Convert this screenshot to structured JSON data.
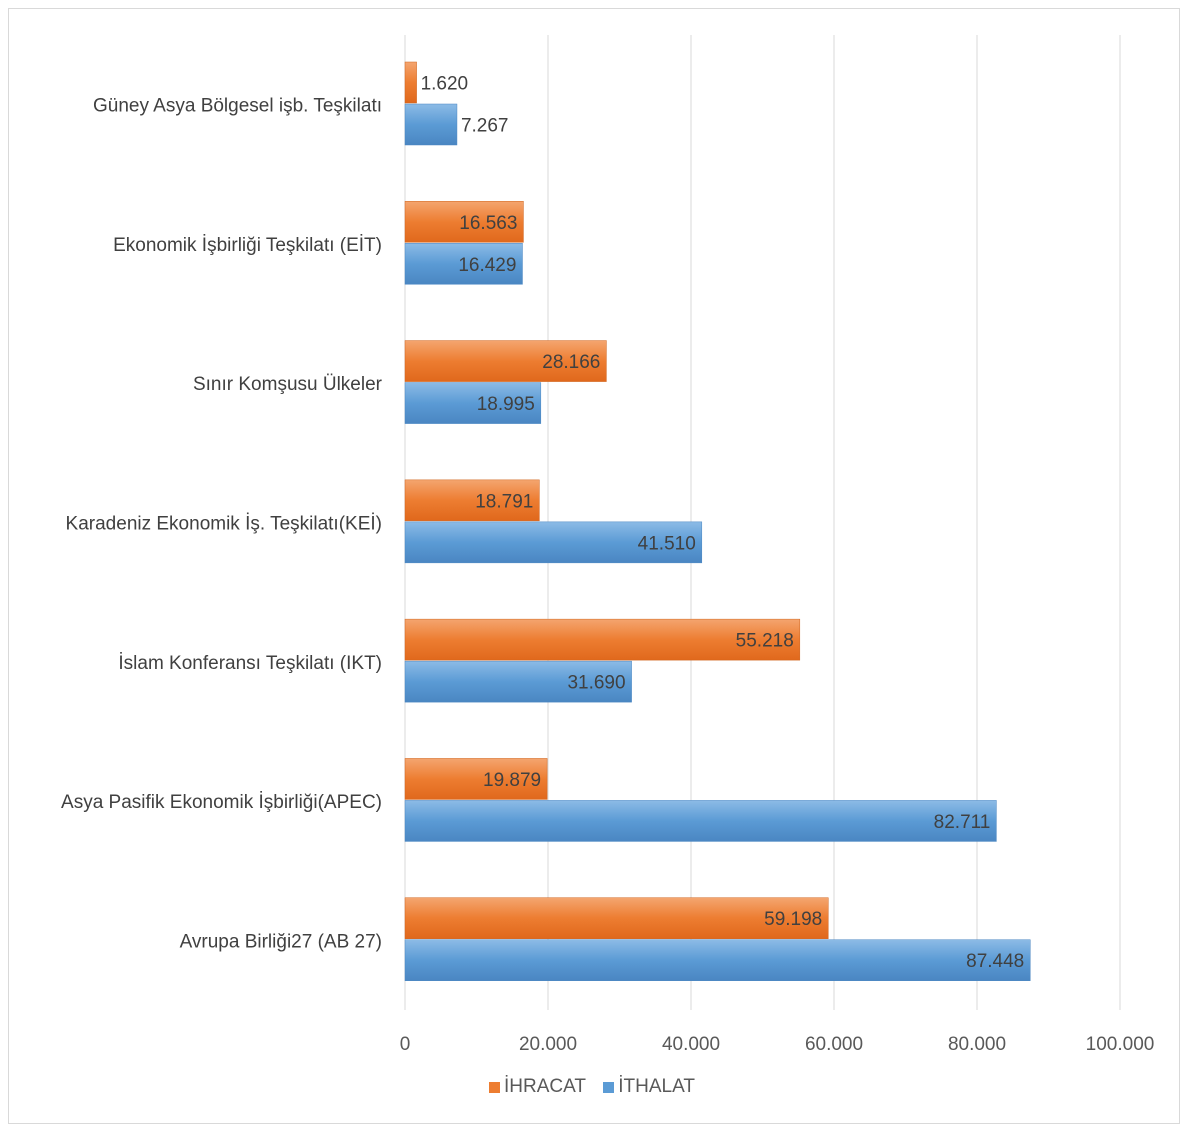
{
  "chart_data": {
    "type": "bar",
    "orientation": "horizontal",
    "title": "",
    "xlabel": "",
    "ylabel": "",
    "xlim": [
      0,
      100000
    ],
    "x_ticks": [
      0,
      20000,
      40000,
      60000,
      80000,
      100000
    ],
    "x_tick_labels": [
      "0",
      "20.000",
      "40.000",
      "60.000",
      "80.000",
      "100.000"
    ],
    "grid": true,
    "legend_position": "bottom",
    "categories": [
      "Güney Asya Bölgesel işb. Teşkilatı",
      "Ekonomik İşbirliği Teşkilatı (EİT)",
      "Sınır Komşusu Ülkeler",
      "Karadeniz Ekonomik İş. Teşkilatı(KEİ)",
      "İslam Konferansı Teşkilatı (IKT)",
      "Asya Pasifik Ekonomik İşbirliği(APEC)",
      "Avrupa Birliği27  (AB 27)"
    ],
    "series": [
      {
        "name": "İHRACAT",
        "color": "#ed7d31",
        "values": [
          1620,
          16563,
          28166,
          18791,
          55218,
          19879,
          59198
        ],
        "labels": [
          "1.620",
          "16.563",
          "28.166",
          "18.791",
          "55.218",
          "19.879",
          "59.198"
        ]
      },
      {
        "name": "İTHALAT",
        "color": "#5b9bd5",
        "values": [
          7267,
          16429,
          18995,
          41510,
          31690,
          82711,
          87448
        ],
        "labels": [
          "7.267",
          "16.429",
          "18.995",
          "41.510",
          "31.690",
          "82.711",
          "87.448"
        ]
      }
    ]
  }
}
